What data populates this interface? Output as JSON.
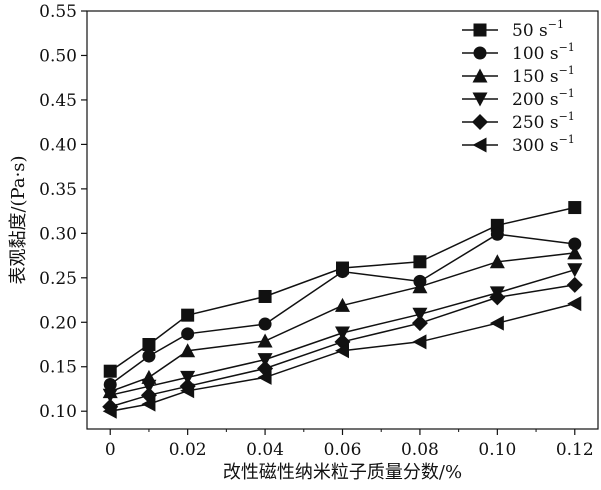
{
  "chart_data": {
    "type": "line",
    "title": "",
    "xlabel": "改性磁性纳米粒子质量分数/%",
    "ylabel": "表观黏度/(Pa·s)",
    "xlim": [
      -0.006,
      0.126
    ],
    "ylim": [
      0.08,
      0.55
    ],
    "x_ticks": [
      0,
      0.02,
      0.04,
      0.06,
      0.08,
      0.1,
      0.12
    ],
    "x_tick_labels": [
      "0",
      "0.02",
      "0.04",
      "0.06",
      "0.08",
      "0.10",
      "0.12"
    ],
    "y_ticks": [
      0.1,
      0.15,
      0.2,
      0.25,
      0.3,
      0.35,
      0.4,
      0.45,
      0.5,
      0.55
    ],
    "y_tick_labels": [
      "0.10",
      "0.15",
      "0.20",
      "0.25",
      "0.30",
      "0.35",
      "0.40",
      "0.45",
      "0.50",
      "0.55"
    ],
    "grid": false,
    "legend_position": "top-right",
    "x": [
      0,
      0.01,
      0.02,
      0.04,
      0.06,
      0.08,
      0.1,
      0.12
    ],
    "series": [
      {
        "name": "50",
        "unit": "s",
        "exp": "−1",
        "marker": "square",
        "values": [
          0.145,
          0.175,
          0.208,
          0.229,
          0.261,
          0.268,
          0.309,
          0.329
        ]
      },
      {
        "name": "100",
        "unit": "s",
        "exp": "−1",
        "marker": "circle",
        "values": [
          0.13,
          0.162,
          0.187,
          0.198,
          0.257,
          0.246,
          0.299,
          0.288
        ]
      },
      {
        "name": "150",
        "unit": "s",
        "exp": "−1",
        "marker": "triangle-up",
        "values": [
          0.122,
          0.138,
          0.168,
          0.179,
          0.219,
          0.24,
          0.268,
          0.278
        ]
      },
      {
        "name": "200",
        "unit": "s",
        "exp": "−1",
        "marker": "triangle-down",
        "values": [
          0.118,
          0.128,
          0.138,
          0.158,
          0.188,
          0.209,
          0.233,
          0.259
        ]
      },
      {
        "name": "250",
        "unit": "s",
        "exp": "−1",
        "marker": "diamond",
        "values": [
          0.105,
          0.118,
          0.128,
          0.148,
          0.178,
          0.199,
          0.228,
          0.242
        ]
      },
      {
        "name": "300",
        "unit": "s",
        "exp": "−1",
        "marker": "triangle-left",
        "values": [
          0.1,
          0.108,
          0.123,
          0.138,
          0.168,
          0.178,
          0.199,
          0.221
        ]
      }
    ]
  }
}
